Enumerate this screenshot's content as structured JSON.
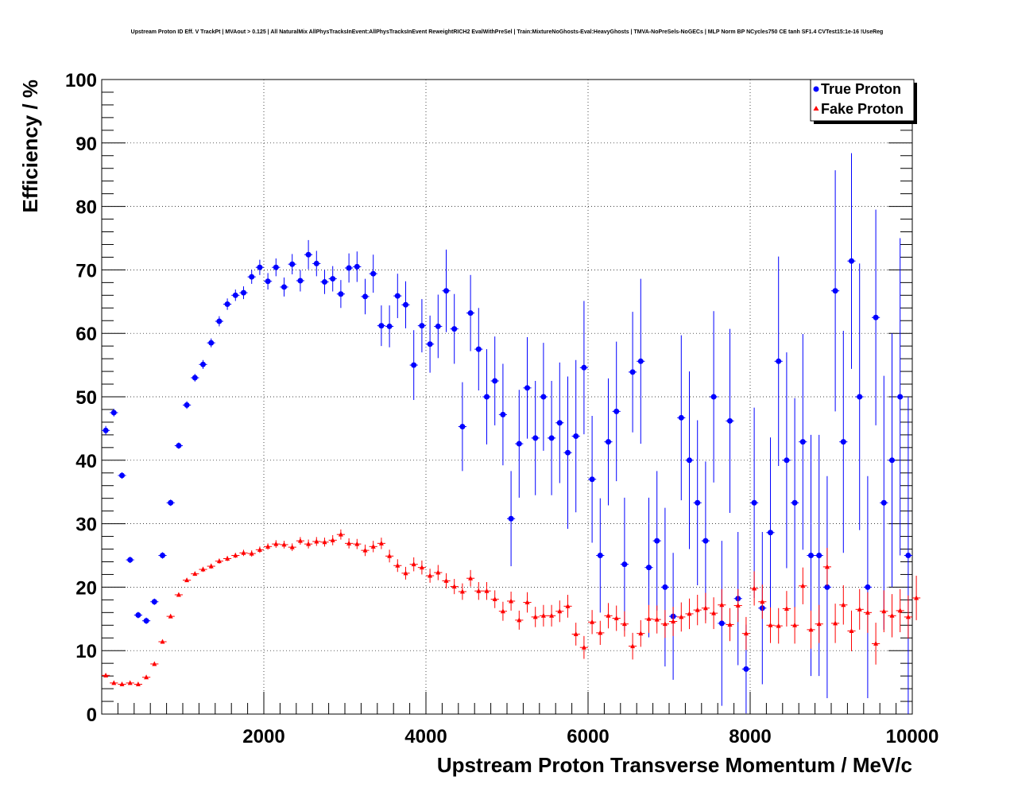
{
  "chart_data": {
    "type": "scatter",
    "title": "Upstream Proton ID Eff. V TrackPt | MVAout > 0.125 | All NaturalMix AllPhysTracksInEvent:AllPhysTracksInEvent ReweightRICH2 EvalWithPreSel | Train:MixtureNoGhosts-Eval:HeavyGhosts | TMVA-NoPreSels-NoGECs | MLP Norm BP NCycles750 CE tanh SF1.4 CVTest15:1e-16 !UseReg",
    "xlabel": "Upstream Proton Transverse Momentum / MeV/c",
    "ylabel": "Efficiency / %",
    "xlim": [
      0,
      10000
    ],
    "ylim": [
      0,
      100
    ],
    "x_ticks": [
      2000,
      4000,
      6000,
      8000,
      10000
    ],
    "y_ticks": [
      0,
      10,
      20,
      30,
      40,
      50,
      60,
      70,
      80,
      90,
      100
    ],
    "grid": true,
    "legend_position": "top-right",
    "series": [
      {
        "name": "True Proton",
        "color": "#0000ff",
        "marker": "circle",
        "points": [
          [
            50,
            44.7,
            0.7
          ],
          [
            150,
            47.5,
            0.6
          ],
          [
            250,
            37.6,
            0.5
          ],
          [
            350,
            24.3,
            0.5
          ],
          [
            450,
            15.6,
            0.5
          ],
          [
            550,
            14.7,
            0.5
          ],
          [
            650,
            17.7,
            0.5
          ],
          [
            750,
            25.0,
            0.5
          ],
          [
            850,
            33.3,
            0.5
          ],
          [
            950,
            42.3,
            0.5
          ],
          [
            1050,
            48.7,
            0.6
          ],
          [
            1150,
            53.0,
            0.6
          ],
          [
            1250,
            55.1,
            0.7
          ],
          [
            1350,
            58.5,
            0.7
          ],
          [
            1450,
            61.9,
            0.8
          ],
          [
            1550,
            64.6,
            0.9
          ],
          [
            1650,
            66.0,
            0.9
          ],
          [
            1750,
            66.4,
            1.0
          ],
          [
            1850,
            68.9,
            1.1
          ],
          [
            1950,
            70.4,
            1.2
          ],
          [
            2050,
            68.2,
            1.3
          ],
          [
            2150,
            70.4,
            1.4
          ],
          [
            2250,
            67.3,
            1.5
          ],
          [
            2350,
            70.9,
            1.6
          ],
          [
            2450,
            68.3,
            1.7
          ],
          [
            2550,
            72.4,
            2.3
          ],
          [
            2650,
            71.0,
            2.0
          ],
          [
            2750,
            68.1,
            1.9
          ],
          [
            2850,
            68.6,
            2.0
          ],
          [
            2950,
            66.2,
            2.2
          ],
          [
            3050,
            70.3,
            2.3
          ],
          [
            3150,
            70.5,
            2.4
          ],
          [
            3250,
            65.8,
            2.8
          ],
          [
            3350,
            69.4,
            3.0
          ],
          [
            3450,
            61.2,
            3.2
          ],
          [
            3550,
            61.1,
            3.3
          ],
          [
            3650,
            65.9,
            3.5
          ],
          [
            3750,
            64.5,
            3.7
          ],
          [
            3850,
            55.0,
            5.5
          ],
          [
            3950,
            61.2,
            4.2
          ],
          [
            4050,
            58.3,
            4.5
          ],
          [
            4150,
            61.1,
            5.0
          ],
          [
            4250,
            66.7,
            6.5
          ],
          [
            4350,
            60.7,
            5.5
          ],
          [
            4450,
            45.3,
            7.0
          ],
          [
            4550,
            63.2,
            6.0
          ],
          [
            4650,
            57.5,
            6.5
          ],
          [
            4750,
            50.0,
            7.5
          ],
          [
            4850,
            52.5,
            7.0
          ],
          [
            4950,
            47.2,
            8.0
          ],
          [
            5050,
            30.8,
            7.5
          ],
          [
            5150,
            42.6,
            8.5
          ],
          [
            5250,
            51.4,
            8.0
          ],
          [
            5350,
            43.5,
            9.0
          ],
          [
            5450,
            50.0,
            8.5
          ],
          [
            5550,
            43.5,
            9.0
          ],
          [
            5650,
            45.9,
            9.5
          ],
          [
            5750,
            41.2,
            12.0
          ],
          [
            5850,
            43.8,
            12.0
          ],
          [
            5950,
            54.6,
            10.5
          ],
          [
            6050,
            37.0,
            10.0
          ],
          [
            6150,
            25.0,
            9.0
          ],
          [
            6250,
            42.9,
            10.0
          ],
          [
            6350,
            47.7,
            11.0
          ],
          [
            6450,
            23.6,
            10.5
          ],
          [
            6550,
            53.9,
            9.5
          ],
          [
            6650,
            55.6,
            13.0
          ],
          [
            6750,
            23.1,
            11.0
          ],
          [
            6850,
            27.3,
            11.0
          ],
          [
            6950,
            20.0,
            12.5
          ],
          [
            7050,
            15.4,
            10.0
          ],
          [
            7150,
            46.7,
            13.0
          ],
          [
            7250,
            40.0,
            14.0
          ],
          [
            7350,
            33.3,
            13.0
          ],
          [
            7450,
            27.3,
            12.5
          ],
          [
            7550,
            50.0,
            13.5
          ],
          [
            7650,
            14.3,
            13.0
          ],
          [
            7750,
            46.2,
            14.5
          ],
          [
            7850,
            18.2,
            10.5
          ],
          [
            7950,
            7.1,
            7.0
          ],
          [
            8050,
            33.3,
            15.0
          ],
          [
            8150,
            16.7,
            12.0
          ],
          [
            8250,
            28.6,
            15.0
          ],
          [
            8350,
            55.6,
            16.5
          ],
          [
            8450,
            40.0,
            17.0
          ],
          [
            8550,
            33.3,
            16.5
          ],
          [
            8650,
            42.9,
            17.0
          ],
          [
            8750,
            25.0,
            19.0
          ],
          [
            8850,
            25.0,
            19.0
          ],
          [
            8950,
            20.0,
            17.5
          ],
          [
            9050,
            66.7,
            19.0
          ],
          [
            9150,
            42.9,
            17.5
          ],
          [
            9250,
            71.4,
            17.0
          ],
          [
            9350,
            50.0,
            21.0
          ],
          [
            9450,
            20.0,
            17.5
          ],
          [
            9550,
            62.5,
            17.0
          ],
          [
            9650,
            33.3,
            20.0
          ],
          [
            9750,
            40.0,
            20.0
          ],
          [
            9850,
            50.0,
            25.0
          ],
          [
            9950,
            25.0,
            25.0
          ]
        ]
      },
      {
        "name": "Fake Proton",
        "color": "#ff0000",
        "marker": "triangle",
        "points": [
          [
            50,
            6.1,
            0.2
          ],
          [
            150,
            4.9,
            0.2
          ],
          [
            250,
            4.7,
            0.2
          ],
          [
            350,
            4.9,
            0.2
          ],
          [
            450,
            4.7,
            0.2
          ],
          [
            550,
            5.8,
            0.2
          ],
          [
            650,
            7.9,
            0.2
          ],
          [
            750,
            11.4,
            0.3
          ],
          [
            850,
            15.4,
            0.3
          ],
          [
            950,
            18.8,
            0.3
          ],
          [
            1050,
            21.1,
            0.3
          ],
          [
            1150,
            22.1,
            0.3
          ],
          [
            1250,
            22.8,
            0.4
          ],
          [
            1350,
            23.3,
            0.4
          ],
          [
            1450,
            24.1,
            0.4
          ],
          [
            1550,
            24.5,
            0.4
          ],
          [
            1650,
            25.0,
            0.4
          ],
          [
            1750,
            25.4,
            0.5
          ],
          [
            1850,
            25.3,
            0.5
          ],
          [
            1950,
            25.9,
            0.5
          ],
          [
            2050,
            26.4,
            0.5
          ],
          [
            2150,
            26.8,
            0.6
          ],
          [
            2250,
            26.7,
            0.6
          ],
          [
            2350,
            26.3,
            0.6
          ],
          [
            2450,
            27.3,
            0.6
          ],
          [
            2550,
            26.8,
            0.7
          ],
          [
            2650,
            27.2,
            0.7
          ],
          [
            2750,
            27.1,
            0.7
          ],
          [
            2850,
            27.4,
            0.8
          ],
          [
            2950,
            28.3,
            0.8
          ],
          [
            3050,
            26.9,
            0.8
          ],
          [
            3150,
            26.8,
            0.8
          ],
          [
            3250,
            25.8,
            0.9
          ],
          [
            3350,
            26.4,
            0.9
          ],
          [
            3450,
            26.9,
            0.9
          ],
          [
            3550,
            24.9,
            1.0
          ],
          [
            3650,
            23.4,
            1.0
          ],
          [
            3750,
            22.2,
            1.0
          ],
          [
            3850,
            23.6,
            1.1
          ],
          [
            3950,
            23.1,
            1.1
          ],
          [
            4050,
            21.8,
            1.1
          ],
          [
            4150,
            22.3,
            1.2
          ],
          [
            4250,
            21.0,
            1.2
          ],
          [
            4350,
            20.1,
            1.2
          ],
          [
            4450,
            19.3,
            1.3
          ],
          [
            4550,
            21.4,
            1.3
          ],
          [
            4650,
            19.4,
            1.4
          ],
          [
            4750,
            19.4,
            1.4
          ],
          [
            4850,
            18.1,
            1.4
          ],
          [
            4950,
            16.2,
            1.5
          ],
          [
            5050,
            17.8,
            1.5
          ],
          [
            5150,
            14.8,
            1.5
          ],
          [
            5250,
            17.6,
            1.6
          ],
          [
            5350,
            15.3,
            1.6
          ],
          [
            5450,
            15.5,
            1.7
          ],
          [
            5550,
            15.5,
            1.7
          ],
          [
            5650,
            16.2,
            1.7
          ],
          [
            5750,
            17.0,
            1.8
          ],
          [
            5850,
            12.6,
            1.8
          ],
          [
            5950,
            10.5,
            1.8
          ],
          [
            6050,
            14.5,
            1.9
          ],
          [
            6150,
            12.8,
            1.9
          ],
          [
            6250,
            15.5,
            2.0
          ],
          [
            6350,
            15.1,
            2.0
          ],
          [
            6450,
            14.2,
            2.0
          ],
          [
            6550,
            10.7,
            2.1
          ],
          [
            6650,
            12.7,
            2.1
          ],
          [
            6750,
            15.0,
            2.2
          ],
          [
            6850,
            14.9,
            2.2
          ],
          [
            6950,
            14.2,
            2.2
          ],
          [
            7050,
            14.6,
            2.3
          ],
          [
            7150,
            15.3,
            2.3
          ],
          [
            7250,
            15.8,
            2.4
          ],
          [
            7350,
            16.4,
            2.4
          ],
          [
            7450,
            16.7,
            2.4
          ],
          [
            7550,
            15.9,
            2.5
          ],
          [
            7650,
            17.2,
            2.5
          ],
          [
            7750,
            14.1,
            2.6
          ],
          [
            7850,
            17.1,
            2.6
          ],
          [
            7950,
            12.7,
            2.6
          ],
          [
            8050,
            19.8,
            2.7
          ],
          [
            8150,
            17.7,
            2.7
          ],
          [
            8250,
            14.0,
            2.8
          ],
          [
            8350,
            13.9,
            2.8
          ],
          [
            8450,
            16.6,
            2.8
          ],
          [
            8550,
            14.0,
            2.9
          ],
          [
            8650,
            20.2,
            2.9
          ],
          [
            8750,
            13.3,
            3.0
          ],
          [
            8850,
            14.2,
            3.0
          ],
          [
            8950,
            23.2,
            3.0
          ],
          [
            9050,
            14.3,
            3.1
          ],
          [
            9150,
            17.2,
            3.1
          ],
          [
            9250,
            13.1,
            3.2
          ],
          [
            9350,
            16.5,
            3.2
          ],
          [
            9450,
            16.0,
            3.2
          ],
          [
            9550,
            11.1,
            3.3
          ],
          [
            9650,
            16.2,
            3.3
          ],
          [
            9750,
            15.5,
            3.4
          ],
          [
            9850,
            16.3,
            3.4
          ],
          [
            9950,
            15.3,
            3.4
          ],
          [
            10050,
            18.3,
            3.5
          ]
        ]
      }
    ]
  }
}
